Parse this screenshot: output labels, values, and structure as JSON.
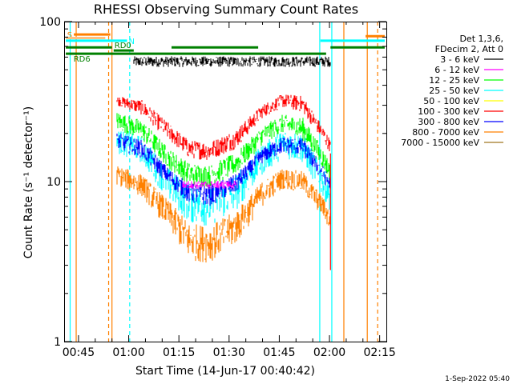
{
  "chart_data": {
    "type": "line",
    "title": "RHESSI Observing Summary Count Rates",
    "xlabel": "Start Time (14-Jun-17 00:40:42)",
    "ylabel": "Count Rate (s⁻¹ detector⁻¹)",
    "yscale": "log",
    "xlim": [
      40.7,
      137.0
    ],
    "ylim": [
      1,
      100
    ],
    "x_ticks": [
      {
        "value": 45,
        "label": "00:45"
      },
      {
        "value": 60,
        "label": "01:00"
      },
      {
        "value": 75,
        "label": "01:15"
      },
      {
        "value": 90,
        "label": "01:30"
      },
      {
        "value": 105,
        "label": "01:45"
      },
      {
        "value": 120,
        "label": "02:00"
      },
      {
        "value": 135,
        "label": "02:15"
      }
    ],
    "y_ticks": [
      {
        "value": 1,
        "label": "1"
      },
      {
        "value": 10,
        "label": "10"
      },
      {
        "value": 100,
        "label": "100"
      }
    ],
    "legend": {
      "placement": "right",
      "header": [
        "Det 1,3,6,",
        "FDecim 2, Att 0"
      ],
      "entries": [
        {
          "label": "3 - 6 keV",
          "color": "#000000"
        },
        {
          "label": "6 - 12 keV",
          "color": "#ff00ff"
        },
        {
          "label": "12 - 25 keV",
          "color": "#00ff00"
        },
        {
          "label": "25 - 50 keV",
          "color": "#00ffff"
        },
        {
          "label": "50 - 100 keV",
          "color": "#ffff00"
        },
        {
          "label": "100 - 300 keV",
          "color": "#ff0000"
        },
        {
          "label": "300 - 800 keV",
          "color": "#0000ff"
        },
        {
          "label": "800 - 7000 keV",
          "color": "#ff8000"
        },
        {
          "label": "7000 - 15000 keV",
          "color": "#a07820"
        }
      ]
    },
    "data_window": [
      61.5,
      120.3
    ],
    "series": [
      {
        "name": "3 - 6 keV",
        "color": "#000000",
        "min_env": [
          [
            61.5,
            52
          ],
          [
            120.3,
            52
          ]
        ],
        "max_env": [
          [
            61.5,
            60
          ],
          [
            120.3,
            60
          ]
        ]
      },
      {
        "name": "100 - 300 keV",
        "color": "#ff0000",
        "min_env": [
          [
            56.5,
            30
          ],
          [
            64,
            26
          ],
          [
            72,
            18
          ],
          [
            78,
            14
          ],
          [
            84,
            13.5
          ],
          [
            92,
            16
          ],
          [
            100,
            25
          ],
          [
            106,
            29
          ],
          [
            112,
            27
          ],
          [
            118,
            18
          ],
          [
            120.3,
            15
          ]
        ],
        "max_env": [
          [
            56.5,
            34
          ],
          [
            64,
            32
          ],
          [
            72,
            23
          ],
          [
            78,
            18
          ],
          [
            84,
            17.5
          ],
          [
            92,
            21
          ],
          [
            100,
            30
          ],
          [
            106,
            35
          ],
          [
            112,
            34
          ],
          [
            118,
            22
          ],
          [
            120.3,
            18
          ]
        ]
      },
      {
        "name": "12 - 25 keV",
        "color": "#00ff00",
        "min_env": [
          [
            56.5,
            21
          ],
          [
            64,
            18
          ],
          [
            72,
            12
          ],
          [
            78,
            9.5
          ],
          [
            84,
            9.2
          ],
          [
            92,
            11
          ],
          [
            100,
            17
          ],
          [
            106,
            20
          ],
          [
            112,
            18
          ],
          [
            118,
            12
          ],
          [
            120.3,
            10
          ]
        ],
        "max_env": [
          [
            56.5,
            27
          ],
          [
            64,
            24
          ],
          [
            72,
            16
          ],
          [
            78,
            13
          ],
          [
            84,
            12.5
          ],
          [
            92,
            15
          ],
          [
            100,
            22
          ],
          [
            106,
            26
          ],
          [
            112,
            25
          ],
          [
            118,
            16
          ],
          [
            120.3,
            13
          ]
        ]
      },
      {
        "name": "25 - 50 keV",
        "color": "#00ffff",
        "min_env": [
          [
            56.5,
            15
          ],
          [
            64,
            13
          ],
          [
            72,
            7.5
          ],
          [
            78,
            5.5
          ],
          [
            84,
            5.2
          ],
          [
            92,
            6.5
          ],
          [
            100,
            11
          ],
          [
            106,
            14
          ],
          [
            112,
            13
          ],
          [
            118,
            8
          ],
          [
            120.3,
            6.5
          ]
        ],
        "max_env": [
          [
            56.5,
            21
          ],
          [
            64,
            19
          ],
          [
            72,
            12
          ],
          [
            78,
            9.5
          ],
          [
            84,
            9
          ],
          [
            92,
            11
          ],
          [
            100,
            17
          ],
          [
            106,
            21
          ],
          [
            112,
            20
          ],
          [
            118,
            12
          ],
          [
            120.3,
            10
          ]
        ]
      },
      {
        "name": "300 - 800 keV",
        "color": "#0000ff",
        "min_env": [
          [
            56.5,
            16
          ],
          [
            64,
            14
          ],
          [
            72,
            9.5
          ],
          [
            78,
            7.3
          ],
          [
            84,
            7
          ],
          [
            92,
            8.4
          ],
          [
            100,
            13
          ],
          [
            106,
            15
          ],
          [
            112,
            14.5
          ],
          [
            118,
            10
          ],
          [
            120.3,
            8.5
          ]
        ],
        "max_env": [
          [
            56.5,
            20
          ],
          [
            64,
            18
          ],
          [
            72,
            12
          ],
          [
            78,
            9.7
          ],
          [
            84,
            9.4
          ],
          [
            92,
            11
          ],
          [
            100,
            16
          ],
          [
            106,
            19
          ],
          [
            112,
            18.5
          ],
          [
            118,
            12.5
          ],
          [
            120.3,
            10.5
          ]
        ]
      },
      {
        "name": "800 - 7000 keV",
        "color": "#ff8000",
        "min_env": [
          [
            56.5,
            9.5
          ],
          [
            64,
            8
          ],
          [
            72,
            5
          ],
          [
            78,
            3.2
          ],
          [
            84,
            3.1
          ],
          [
            92,
            4
          ],
          [
            100,
            7
          ],
          [
            106,
            9
          ],
          [
            112,
            8.5
          ],
          [
            118,
            6
          ],
          [
            120.3,
            4.8
          ]
        ],
        "max_env": [
          [
            56.5,
            12.5
          ],
          [
            64,
            11
          ],
          [
            72,
            7.5
          ],
          [
            78,
            5.5
          ],
          [
            84,
            5.2
          ],
          [
            92,
            6.5
          ],
          [
            100,
            10
          ],
          [
            106,
            12
          ],
          [
            112,
            11.5
          ],
          [
            118,
            8
          ],
          [
            120.3,
            6.5
          ]
        ]
      },
      {
        "name": "6 - 12 keV",
        "color": "#ff00ff",
        "min_env": [
          [
            76,
            9
          ],
          [
            92,
            9
          ]
        ],
        "max_env": [
          [
            76,
            10
          ],
          [
            92,
            10
          ]
        ]
      }
    ],
    "vertical_markers": [
      {
        "x": 42.5,
        "color": "#00ffff",
        "style": "solid"
      },
      {
        "x": 44.3,
        "color": "#ff8000",
        "style": "solid"
      },
      {
        "x": 54.0,
        "color": "#ff8000",
        "style": "dashed"
      },
      {
        "x": 55.0,
        "color": "#ff8000",
        "style": "solid"
      },
      {
        "x": 60.3,
        "color": "#00ffff",
        "style": "dashed"
      },
      {
        "x": 117.1,
        "color": "#00ffff",
        "style": "solid"
      },
      {
        "x": 120.7,
        "color": "#00ffff",
        "style": "solid"
      },
      {
        "x": 124.3,
        "color": "#ff8000",
        "style": "solid"
      },
      {
        "x": 131.3,
        "color": "#ff8000",
        "style": "solid"
      },
      {
        "x": 134.4,
        "color": "#ff8000",
        "style": "dashed"
      }
    ],
    "horizontal_bars": [
      {
        "label": "S",
        "x0": 43.6,
        "x1": 54.5,
        "y": 83,
        "color": "#ff8000"
      },
      {
        "label": "",
        "x0": 41.2,
        "x1": 53.0,
        "y": 79,
        "color": "#ffc080"
      },
      {
        "label": "",
        "x0": 130.8,
        "x1": 136.5,
        "y": 81,
        "color": "#ff8000"
      },
      {
        "label": "N",
        "x0": 41.2,
        "x1": 59.5,
        "y": 76,
        "color": "#00ffff"
      },
      {
        "label": "",
        "x0": 117.3,
        "x1": 136.5,
        "y": 76,
        "color": "#00ffff"
      },
      {
        "label": "",
        "x0": 41.2,
        "x1": 55.0,
        "y": 69,
        "color": "#008000"
      },
      {
        "label": "",
        "x0": 72.8,
        "x1": 98.7,
        "y": 69,
        "color": "#008000"
      },
      {
        "label": "",
        "x0": 120.3,
        "x1": 136.5,
        "y": 69,
        "color": "#008000"
      },
      {
        "label": "RD0",
        "x0": 55.5,
        "x1": 61.5,
        "y": 66,
        "color": "#008000"
      },
      {
        "label": "RD6",
        "x0": 41.2,
        "x1": 119.0,
        "y": 63,
        "color": "#008000"
      }
    ],
    "timestamp": "1-Sep-2022 05:40"
  }
}
